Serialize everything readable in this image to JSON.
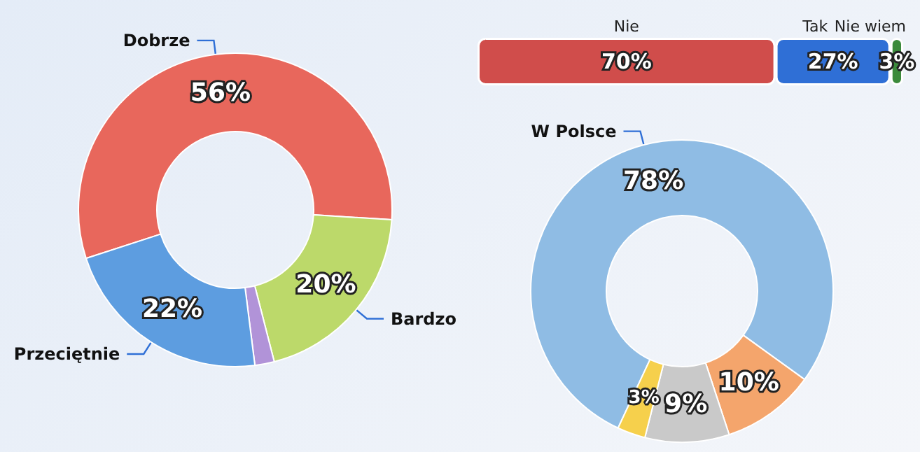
{
  "chart_data": [
    {
      "type": "donut",
      "categories": [
        "Dobrze",
        "Bardzo",
        null,
        "Przeciętnie"
      ],
      "values": [
        56,
        20,
        2,
        22
      ],
      "colors": [
        "#e8675c",
        "#bcd96a",
        "#b193d8",
        "#5d9de0"
      ],
      "value_labels": [
        "56%",
        "20%",
        null,
        "22%"
      ]
    },
    {
      "type": "bar",
      "orientation": "horizontal",
      "stacked": true,
      "categories": [
        null
      ],
      "series": [
        {
          "name": "Nie",
          "color": "#d04d4b",
          "values": [
            70
          ],
          "value_labels": [
            "70%"
          ]
        },
        {
          "name": "Tak",
          "color": "#2f6fd6",
          "values": [
            27
          ],
          "value_labels": [
            "27%"
          ]
        },
        {
          "name": "Nie wiem",
          "color": "#3b8a3b",
          "values": [
            3
          ],
          "value_labels": [
            "3%"
          ]
        }
      ]
    },
    {
      "type": "donut",
      "categories": [
        "W Polsce",
        null,
        null,
        null
      ],
      "values": [
        78,
        10,
        9,
        3
      ],
      "colors": [
        "#8fbce4",
        "#f4a56c",
        "#c9c9c9",
        "#f6d04c"
      ],
      "value_labels": [
        "78%",
        "10%",
        "9%",
        "3%"
      ]
    }
  ]
}
